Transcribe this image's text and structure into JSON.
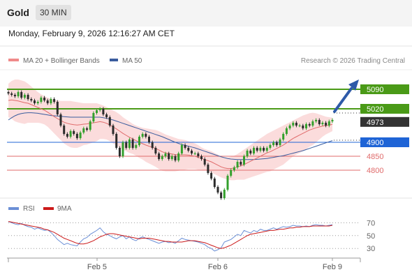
{
  "header": {
    "title": "Gold",
    "timeframe": "30 MIN"
  },
  "datetime": "Monday, February 9, 2026 12:16:27 AM CET",
  "legend": {
    "ma20_label": "MA 20 + Bollinger Bands",
    "ma50_label": "MA 50",
    "copyright": "Research © 2026 Trading Central",
    "rsi_label": "RSI",
    "rsi_ma_label": "9MA"
  },
  "colors": {
    "bullish": "#33a02c",
    "bearish": "#2b2b2b",
    "band": "#f7c9c9",
    "ma20": "#e06b6b",
    "ma50": "#3a5c9e",
    "resistance": "#4a9a17",
    "pivot": "#1f64d6",
    "support": "#e06b6b",
    "current": "#333333",
    "rsi": "#6b8fd6",
    "rsi_ma": "#cc1a1a"
  },
  "chart_data": [
    {
      "type": "line",
      "name": "price",
      "y_scale": {
        "min": 4700,
        "max": 5160
      },
      "levels": [
        {
          "label": "5090",
          "value": 5090,
          "kind": "resistance"
        },
        {
          "label": "5020",
          "value": 5020,
          "kind": "resistance"
        },
        {
          "label": "4973",
          "value": 4973,
          "kind": "current"
        },
        {
          "label": "4900",
          "value": 4900,
          "kind": "pivot"
        },
        {
          "label": "4850",
          "value": 4850,
          "kind": "support"
        },
        {
          "label": "4800",
          "value": 4800,
          "kind": "support"
        }
      ],
      "x_ticks": [
        "Feb 5",
        "Feb 6",
        "Feb 9"
      ],
      "close": [
        5075,
        5070,
        5065,
        5080,
        5060,
        5070,
        5055,
        5050,
        5040,
        5045,
        5060,
        5050,
        5040,
        5055,
        5045,
        5000,
        4960,
        4930,
        4920,
        4940,
        4930,
        4915,
        4935,
        4950,
        4945,
        4975,
        5005,
        5015,
        5020,
        5000,
        4990,
        4960,
        4930,
        4880,
        4850,
        4900,
        4880,
        4910,
        4880,
        4890,
        4920,
        4930,
        4920,
        4900,
        4880,
        4860,
        4840,
        4850,
        4860,
        4840,
        4850,
        4835,
        4860,
        4890,
        4880,
        4870,
        4860,
        4860,
        4850,
        4840,
        4820,
        4790,
        4770,
        4740,
        4720,
        4700,
        4730,
        4780,
        4800,
        4810,
        4830,
        4820,
        4850,
        4870,
        4860,
        4880,
        4870,
        4880,
        4870,
        4880,
        4890,
        4900,
        4890,
        4910,
        4930,
        4950,
        4960,
        4970,
        4960,
        4960,
        4950,
        4965,
        4960,
        4975,
        4980,
        4965,
        4970,
        4960,
        4975,
        4980
      ],
      "ma20": [
        5050,
        5052,
        5050,
        5048,
        5045,
        5042,
        5040,
        5035,
        5030,
        5025,
        5020,
        5015,
        5008,
        5000,
        4992,
        4985,
        4978,
        4972,
        4968,
        4965,
        4963,
        4962,
        4963,
        4965,
        4966,
        4968,
        4970,
        4972,
        4974,
        4972,
        4968,
        4962,
        4955,
        4948,
        4940,
        4932,
        4925,
        4918,
        4912,
        4906,
        4900,
        4895,
        4890,
        4886,
        4882,
        4878,
        4872,
        4866,
        4862,
        4860,
        4858,
        4856,
        4855,
        4855,
        4855,
        4854,
        4852,
        4850,
        4846,
        4842,
        4838,
        4834,
        4830,
        4824,
        4818,
        4812,
        4808,
        4806,
        4806,
        4808,
        4812,
        4816,
        4820,
        4826,
        4832,
        4838,
        4844,
        4850,
        4856,
        4862,
        4866,
        4872,
        4878,
        4884,
        4890,
        4898,
        4906,
        4914,
        4920,
        4926,
        4932,
        4938,
        4944,
        4948,
        4952,
        4955,
        4958,
        4960,
        4962,
        4964
      ],
      "band_upper": [
        5110,
        5120,
        5125,
        5125,
        5122,
        5118,
        5110,
        5100,
        5090,
        5080,
        5072,
        5066,
        5060,
        5056,
        5052,
        5050,
        5048,
        5048,
        5048,
        5048,
        5046,
        5044,
        5042,
        5040,
        5040,
        5040,
        5040,
        5040,
        5036,
        5032,
        5026,
        5020,
        5014,
        5008,
        5000,
        4990,
        4982,
        4974,
        4966,
        4960,
        4956,
        4952,
        4950,
        4948,
        4946,
        4944,
        4940,
        4934,
        4928,
        4924,
        4920,
        4916,
        4912,
        4910,
        4908,
        4904,
        4900,
        4896,
        4890,
        4882,
        4876,
        4872,
        4868,
        4862,
        4856,
        4850,
        4846,
        4846,
        4848,
        4852,
        4858,
        4866,
        4874,
        4882,
        4890,
        4898,
        4906,
        4914,
        4922,
        4930,
        4936,
        4942,
        4948,
        4954,
        4960,
        4966,
        4972,
        4978,
        4984,
        4990,
        4996,
        5000,
        5004,
        5006,
        5004,
        5000,
        4996,
        4992,
        4990,
        4988
      ],
      "band_lower": [
        4990,
        4984,
        4975,
        4971,
        4968,
        4966,
        4970,
        4970,
        4970,
        4970,
        4968,
        4964,
        4956,
        4944,
        4932,
        4920,
        4908,
        4896,
        4888,
        4882,
        4880,
        4880,
        4884,
        4890,
        4892,
        4896,
        4900,
        4904,
        4912,
        4912,
        4910,
        4904,
        4896,
        4888,
        4880,
        4874,
        4868,
        4862,
        4858,
        4852,
        4844,
        4838,
        4830,
        4824,
        4818,
        4812,
        4804,
        4798,
        4796,
        4796,
        4796,
        4796,
        4798,
        4800,
        4802,
        4804,
        4804,
        4804,
        4802,
        4802,
        4800,
        4796,
        4792,
        4786,
        4780,
        4774,
        4770,
        4766,
        4764,
        4764,
        4766,
        4766,
        4766,
        4770,
        4774,
        4778,
        4782,
        4786,
        4790,
        4794,
        4796,
        4802,
        4808,
        4814,
        4820,
        4830,
        4840,
        4850,
        4856,
        4862,
        4868,
        4876,
        4884,
        4890,
        4900,
        4910,
        4920,
        4928,
        4934,
        4940
      ],
      "ma50": [
        4980,
        4988,
        4995,
        5000,
        5003,
        5005,
        5006,
        5006,
        5005,
        5004,
        5002,
        5000,
        4998,
        4996,
        4995,
        4994,
        4993,
        4992,
        4991,
        4990,
        4990,
        4990,
        4990,
        4990,
        4990,
        4990,
        4990,
        4990,
        4990,
        4988,
        4986,
        4983,
        4980,
        4976,
        4972,
        4968,
        4964,
        4960,
        4956,
        4952,
        4948,
        4944,
        4940,
        4936,
        4932,
        4928,
        4924,
        4920,
        4915,
        4910,
        4905,
        4900,
        4896,
        4892,
        4889,
        4886,
        4883,
        4880,
        4876,
        4872,
        4868,
        4864,
        4860,
        4856,
        4852,
        4848,
        4845,
        4842,
        4840,
        4839,
        4838,
        4838,
        4838,
        4838,
        4838,
        4838,
        4839,
        4840,
        4841,
        4842,
        4844,
        4846,
        4848,
        4850,
        4852,
        4855,
        4858,
        4861,
        4864,
        4867,
        4870,
        4874,
        4878,
        4882,
        4886,
        4890,
        4894,
        4898,
        4902,
        4906
      ],
      "forecast": {
        "from": 4973,
        "to": 5090
      }
    },
    {
      "type": "line",
      "name": "RSI",
      "y_scale": {
        "min": 15,
        "max": 78
      },
      "levels": [
        70,
        50,
        30
      ],
      "rsi": [
        72,
        70,
        68,
        67,
        69,
        66,
        64,
        63,
        60,
        62,
        60,
        58,
        59,
        55,
        50,
        44,
        40,
        36,
        38,
        36,
        35,
        34,
        40,
        45,
        47,
        52,
        55,
        58,
        62,
        56,
        52,
        50,
        47,
        45,
        48,
        50,
        45,
        48,
        44,
        42,
        46,
        48,
        46,
        44,
        42,
        40,
        38,
        40,
        41,
        39,
        40,
        38,
        42,
        46,
        44,
        43,
        42,
        41,
        40,
        38,
        36,
        32,
        30,
        26,
        28,
        31,
        40,
        42,
        44,
        48,
        52,
        50,
        58,
        56,
        54,
        58,
        56,
        60,
        58,
        58,
        60,
        62,
        60,
        62,
        64,
        63,
        64,
        66,
        65,
        65,
        64,
        65,
        64,
        66,
        67,
        66,
        66,
        65,
        66,
        67
      ],
      "rsi_ma": [
        72,
        71,
        70,
        69,
        68,
        67,
        66,
        65,
        64,
        63,
        62,
        60,
        59,
        57,
        55,
        52,
        49,
        46,
        44,
        42,
        40,
        38,
        37,
        37,
        38,
        40,
        42,
        45,
        48,
        50,
        52,
        53,
        53,
        52,
        51,
        50,
        49,
        48,
        47,
        46,
        45,
        46,
        46,
        46,
        45,
        44,
        43,
        42,
        41,
        41,
        40,
        40,
        40,
        40,
        41,
        42,
        42,
        42,
        41,
        40,
        39,
        37,
        35,
        33,
        31,
        30,
        31,
        33,
        35,
        38,
        41,
        44,
        47,
        50,
        52,
        53,
        54,
        55,
        56,
        57,
        58,
        58,
        59,
        60,
        60,
        61,
        62,
        62,
        63,
        63,
        64,
        64,
        64,
        65,
        65,
        65,
        65,
        65,
        65,
        66
      ]
    }
  ]
}
